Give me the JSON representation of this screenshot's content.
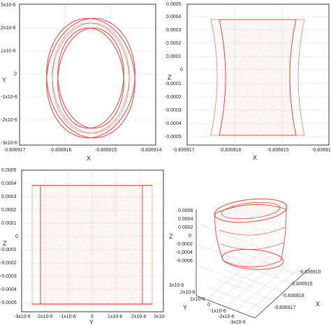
{
  "accent_color": "#e8403f",
  "chart_data": [
    {
      "type": "line",
      "x_label": "X",
      "y_label": "Y",
      "x_ticks": [
        "-0.836917",
        "-0.836916",
        "-0.836915",
        "-0.836914"
      ],
      "y_ticks": [
        "3x10-6",
        "2x10-6",
        "1x10-6",
        "0",
        "-1x10-6",
        "-2x10-6",
        "-3x10-6"
      ],
      "xlim": [
        -0.836917,
        -0.836914
      ],
      "ylim": [
        -3e-06,
        3e-06
      ],
      "grid": true,
      "shape": "nested tilted ellipses (orbit projection)"
    },
    {
      "type": "line",
      "x_label": "X",
      "y_label": "Z",
      "x_ticks": [
        "-0.836917",
        "-0.836916",
        "-0.836915",
        "-0.83691"
      ],
      "y_ticks": [
        "0.0005",
        "0.0004",
        "0.0003",
        "0.0002",
        "0.0001",
        "0",
        "-0.0001",
        "-0.0002",
        "-0.0003",
        "-0.0004",
        "-0.0005"
      ],
      "xlim": [
        -0.836917,
        -0.836914
      ],
      "ylim": [
        -0.0005,
        0.0005
      ],
      "grid": true,
      "shape": "curved band"
    },
    {
      "type": "line",
      "x_label": "Y",
      "y_label": "Z",
      "x_ticks": [
        "-3x10-6",
        "-2x10-6",
        "-1x10-6",
        "0",
        "1x10-6",
        "2x10-6",
        "3x10-"
      ],
      "y_ticks": [
        "0.0005",
        "0.0004",
        "0.0003",
        "0.0002",
        "0.0001",
        "0",
        "-0.0001",
        "-0.0002",
        "-0.0003",
        "-0.0004",
        "-0.0005"
      ],
      "xlim": [
        -3e-06,
        3e-06
      ],
      "ylim": [
        -0.0005,
        0.0005
      ],
      "grid": true,
      "shape": "rectangular band"
    },
    {
      "type": "line",
      "x_label": "X",
      "y_label": "Y",
      "z_label": "Z",
      "x_ticks": [
        "-0.836910",
        "-0.836915",
        "-0.836916",
        "-0.836917"
      ],
      "y_ticks": [
        "3x10-6",
        "2x10-6",
        "1x10-6",
        "0",
        "-1x10-6",
        "-2x10-6",
        "-3x10-6"
      ],
      "z_ticks": [
        "0.0006",
        "0.0004",
        "0.0002",
        "0",
        "-0.0002",
        "-0.0004",
        "-0.0006"
      ],
      "projection": "3d",
      "grid": true,
      "shape": "tilted cylinder"
    }
  ]
}
